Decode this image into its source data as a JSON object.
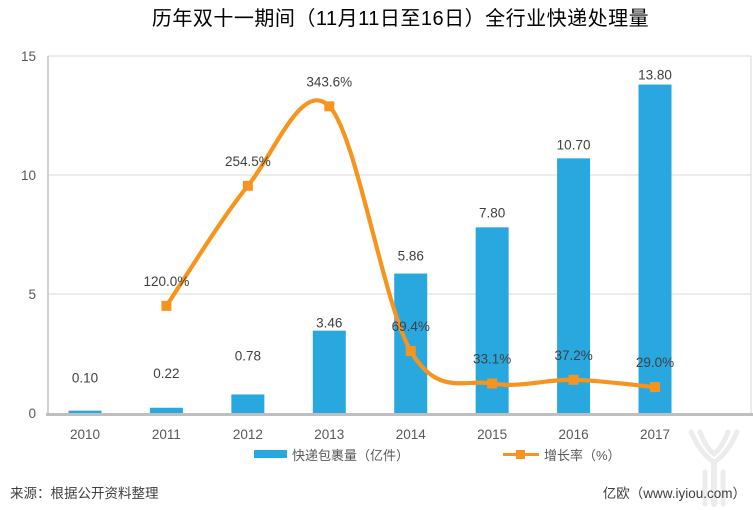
{
  "title": "历年双十一期间（11月11日至16日）全行业快递处理量",
  "chart_data": {
    "type": "bar",
    "title": "历年双十一期间（11月11日至16日）全行业快递处理量",
    "categories": [
      "2010",
      "2011",
      "2012",
      "2013",
      "2014",
      "2015",
      "2016",
      "2017"
    ],
    "series": [
      {
        "name": "快递包裹量（亿件）",
        "type": "bar",
        "color": "#29A8DF",
        "values": [
          0.1,
          0.22,
          0.78,
          3.46,
          5.86,
          7.8,
          10.7,
          13.8
        ],
        "labels": [
          "0.10",
          "0.22",
          "0.78",
          "3.46",
          "5.86",
          "7.80",
          "10.70",
          "13.80"
        ]
      },
      {
        "name": "增长率（%）",
        "type": "line",
        "color": "#F7941E",
        "values": [
          null,
          120.0,
          254.5,
          343.6,
          69.4,
          33.1,
          37.2,
          29.0
        ],
        "labels": [
          null,
          "120.0%",
          "254.5%",
          "343.6%",
          "69.4%",
          "33.1%",
          "37.2%",
          "29.0%"
        ]
      }
    ],
    "left_axis": {
      "min": 0,
      "max": 15,
      "ticks": [
        "0",
        "5",
        "10",
        "15"
      ]
    },
    "right_axis": {
      "min": 0,
      "max": 400,
      "visible": false
    },
    "grid": true,
    "legend_position": "bottom"
  },
  "footer": {
    "source": "来源：根据公开资料整理",
    "brand": "亿欧（www.iyiou.com）"
  },
  "colors": {
    "bar": "#29A8DF",
    "line": "#F7941E",
    "grid": "#D9D9D9",
    "axis_line": "#C6C6C6",
    "baseline": "#BFBFBF",
    "label_text": "#404040",
    "tick_text": "#595959",
    "watermark": "#ECECEC"
  }
}
